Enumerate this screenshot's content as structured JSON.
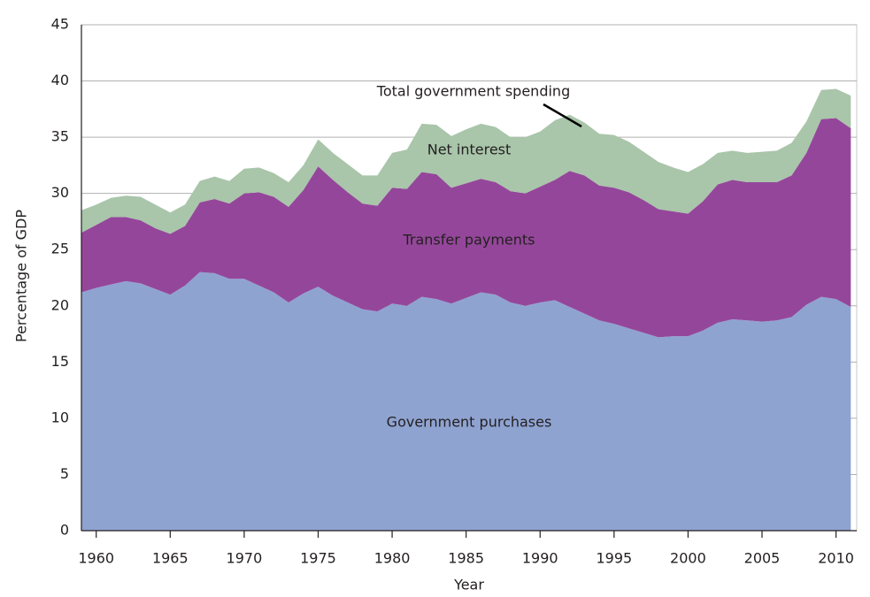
{
  "chart_data": {
    "type": "stacked_area",
    "xlabel": "Year",
    "ylabel": "Percentage of GDP",
    "annotations": [
      "Total government spending"
    ],
    "x": [
      1959,
      1960,
      1961,
      1962,
      1963,
      1964,
      1965,
      1966,
      1967,
      1968,
      1969,
      1970,
      1971,
      1972,
      1973,
      1974,
      1975,
      1976,
      1977,
      1978,
      1979,
      1980,
      1981,
      1982,
      1983,
      1984,
      1985,
      1986,
      1987,
      1988,
      1989,
      1990,
      1991,
      1992,
      1993,
      1994,
      1995,
      1996,
      1997,
      1998,
      1999,
      2000,
      2001,
      2002,
      2003,
      2004,
      2005,
      2006,
      2007,
      2008,
      2009,
      2010,
      2011
    ],
    "series": [
      {
        "name": "Government purchases",
        "color": "#8fa3d1",
        "values": [
          21.2,
          21.6,
          21.9,
          22.2,
          22.0,
          21.5,
          21.0,
          21.8,
          23.0,
          22.9,
          22.4,
          22.4,
          21.8,
          21.2,
          20.3,
          21.1,
          21.7,
          20.9,
          20.3,
          19.7,
          19.5,
          20.2,
          20.0,
          20.8,
          20.6,
          20.2,
          20.7,
          21.2,
          21.0,
          20.3,
          20.0,
          20.3,
          20.5,
          19.9,
          19.3,
          18.7,
          18.4,
          18.0,
          17.6,
          17.2,
          17.3,
          17.3,
          17.8,
          18.5,
          18.8,
          18.7,
          18.6,
          18.7,
          19.0,
          20.1,
          20.8,
          20.6,
          19.9
        ]
      },
      {
        "name": "Transfer payments",
        "color": "#94479a",
        "values": [
          5.3,
          5.6,
          6.0,
          5.7,
          5.6,
          5.4,
          5.4,
          5.3,
          6.2,
          6.6,
          6.7,
          7.6,
          8.3,
          8.5,
          8.5,
          9.2,
          10.7,
          10.3,
          9.8,
          9.4,
          9.4,
          10.3,
          10.4,
          11.1,
          11.1,
          10.3,
          10.2,
          10.1,
          10.0,
          9.9,
          10.0,
          10.3,
          10.7,
          12.1,
          12.3,
          12.0,
          12.1,
          12.1,
          11.8,
          11.4,
          11.1,
          10.9,
          11.5,
          12.3,
          12.4,
          12.3,
          12.4,
          12.3,
          12.6,
          13.5,
          15.8,
          16.1,
          15.9
        ]
      },
      {
        "name": "Net interest",
        "color": "#a9c5aa",
        "values": [
          2.0,
          1.8,
          1.7,
          1.9,
          2.1,
          2.1,
          1.9,
          1.9,
          1.9,
          2.0,
          2.0,
          2.2,
          2.2,
          2.1,
          2.2,
          2.2,
          2.4,
          2.4,
          2.5,
          2.5,
          2.7,
          3.1,
          3.5,
          4.3,
          4.4,
          4.6,
          4.8,
          4.9,
          4.9,
          4.8,
          5.0,
          4.9,
          5.3,
          5.0,
          4.7,
          4.6,
          4.7,
          4.5,
          4.3,
          4.2,
          3.9,
          3.7,
          3.3,
          2.8,
          2.6,
          2.6,
          2.7,
          2.8,
          2.9,
          2.8,
          2.6,
          2.6,
          2.9
        ]
      }
    ],
    "xlim": [
      1959,
      2011.4
    ],
    "xticks": [
      1960,
      1965,
      1970,
      1975,
      1980,
      1985,
      1990,
      1995,
      2000,
      2005,
      2010
    ],
    "ylim": [
      0,
      45
    ],
    "yticks": [
      0,
      5,
      10,
      15,
      20,
      25,
      30,
      35,
      40,
      45
    ],
    "grid": true
  }
}
